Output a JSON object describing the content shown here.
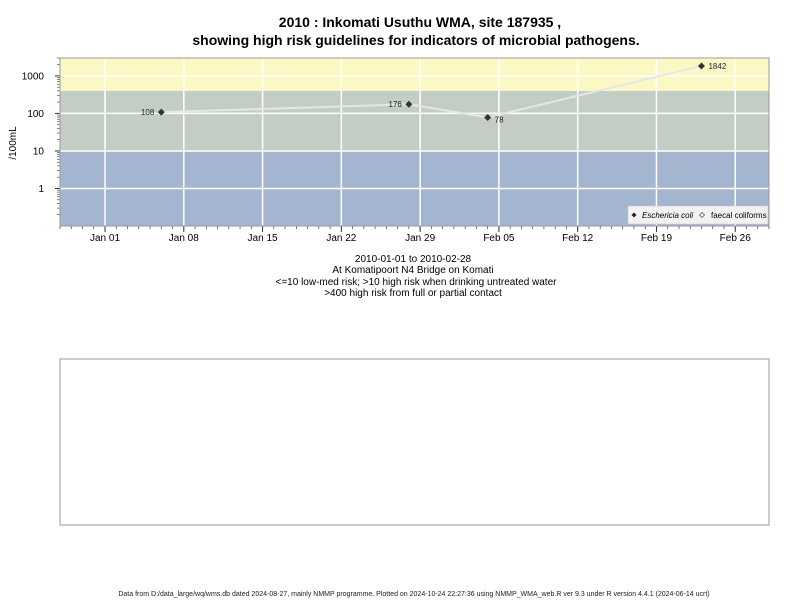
{
  "title_line1": "2010 : Inkomati Usuthu WMA, site 187935 ,",
  "title_line2": "showing high risk guidelines for indicators of microbial pathogens.",
  "caption": [
    "2010-01-01 to 2010-02-28",
    "At Komatipoort N4 Bridge on Komati",
    "<=10 low-med risk; >10 high risk when drinking untreated water",
    ">400 high risk from full or partial contact"
  ],
  "footer": "Data from D:/data_large/wq/wms.db dated 2024-08-27, mainly NMMP programme. Plotted on 2024-10-24 22:27:36 using NMMP_WMA_web.R ver 9.3 under R version 4.4.1 (2024-06-14 ucrt)",
  "colors": {
    "band_low": "#a4b5cf",
    "band_high": "#c4cdc3",
    "band_contact": "#fcf8c4",
    "grid": "#ffffff",
    "series_line": "#e6e6e6",
    "point": "#333333"
  },
  "chart_data": {
    "type": "line",
    "ylabel": "/100mL",
    "y_scale": "log",
    "ylim": [
      0.1,
      3000
    ],
    "y_ticks": [
      1,
      10,
      100,
      1000
    ],
    "y_tick_labels": [
      "1",
      "10",
      "100",
      "1000"
    ],
    "xlim": [
      "2009-12-28",
      "2010-03-01"
    ],
    "x_ticks": [
      "2010-01-01",
      "2010-01-08",
      "2010-01-15",
      "2010-01-22",
      "2010-01-29",
      "2010-02-05",
      "2010-02-12",
      "2010-02-19",
      "2010-02-26"
    ],
    "x_tick_labels": [
      "Jan 01",
      "Jan 08",
      "Jan 15",
      "Jan 22",
      "Jan 29",
      "Feb 05",
      "Feb 12",
      "Feb 19",
      "Feb 26"
    ],
    "bands": [
      {
        "from": 0.1,
        "to": 10,
        "color": "#a4b5cf"
      },
      {
        "from": 10,
        "to": 400,
        "color": "#c4cdc3"
      },
      {
        "from": 400,
        "to": 3000,
        "color": "#fcf8c4"
      }
    ],
    "series": [
      {
        "name": "Eschericia coli",
        "marker": "filled-diamond",
        "x": [
          "2010-01-06",
          "2010-01-28",
          "2010-02-04",
          "2010-02-23"
        ],
        "y": [
          108,
          176,
          78,
          1842
        ],
        "labels": [
          "108",
          "176",
          "78",
          "1842"
        ]
      },
      {
        "name": "faecal coliforms",
        "marker": "open-diamond",
        "x": [],
        "y": []
      }
    ],
    "legend_position": "bottom-right"
  }
}
